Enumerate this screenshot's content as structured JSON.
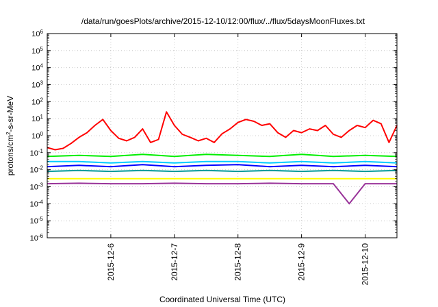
{
  "chart_data": {
    "type": "line",
    "title": "/data/run/goesPlots/archive/2015-12-10/12:00/flux/../flux/5daysMoonFluxes.txt",
    "xlabel": "Coordinated Universal Time (UTC)",
    "ylabel": "protons/cm²-s-sr-MeV",
    "yscale": "log",
    "ylim": [
      1e-06,
      1000000.0
    ],
    "xlim": [
      "2015-12-05T00:00",
      "2015-12-10T12:00"
    ],
    "xticks": [
      "2015-12-6",
      "2015-12-7",
      "2015-12-8",
      "2015-12-9",
      "2015-12-10"
    ],
    "yticks": [
      {
        "base": "10",
        "exp": "-6"
      },
      {
        "base": "10",
        "exp": "-5"
      },
      {
        "base": "10",
        "exp": "-4"
      },
      {
        "base": "10",
        "exp": "-3"
      },
      {
        "base": "10",
        "exp": "-2"
      },
      {
        "base": "10",
        "exp": "-1"
      },
      {
        "base": "10",
        "exp": "0"
      },
      {
        "base": "10",
        "exp": "1"
      },
      {
        "base": "10",
        "exp": "2"
      },
      {
        "base": "10",
        "exp": "3"
      },
      {
        "base": "10",
        "exp": "4"
      },
      {
        "base": "10",
        "exp": "5"
      },
      {
        "base": "10",
        "exp": "6"
      }
    ],
    "grid": true,
    "series": [
      {
        "color": "#ff0000",
        "x": [
          "2015-12-05T00:00",
          "2015-12-05T03:00",
          "2015-12-05T06:00",
          "2015-12-05T09:00",
          "2015-12-05T12:00",
          "2015-12-05T15:00",
          "2015-12-05T18:00",
          "2015-12-05T21:00",
          "2015-12-06T00:00",
          "2015-12-06T03:00",
          "2015-12-06T06:00",
          "2015-12-06T09:00",
          "2015-12-06T12:00",
          "2015-12-06T15:00",
          "2015-12-06T18:00",
          "2015-12-06T21:00",
          "2015-12-07T00:00",
          "2015-12-07T03:00",
          "2015-12-07T06:00",
          "2015-12-07T09:00",
          "2015-12-07T12:00",
          "2015-12-07T15:00",
          "2015-12-07T18:00",
          "2015-12-07T21:00",
          "2015-12-08T00:00",
          "2015-12-08T03:00",
          "2015-12-08T06:00",
          "2015-12-08T09:00",
          "2015-12-08T12:00",
          "2015-12-08T15:00",
          "2015-12-08T18:00",
          "2015-12-08T21:00",
          "2015-12-09T00:00",
          "2015-12-09T03:00",
          "2015-12-09T06:00",
          "2015-12-09T09:00",
          "2015-12-09T12:00",
          "2015-12-09T15:00",
          "2015-12-09T18:00",
          "2015-12-09T21:00",
          "2015-12-10T00:00",
          "2015-12-10T03:00",
          "2015-12-10T06:00",
          "2015-12-10T09:00",
          "2015-12-10T12:00"
        ],
        "y": [
          0.2,
          0.15,
          0.18,
          0.35,
          0.8,
          1.5,
          4,
          9,
          2,
          0.7,
          0.5,
          0.8,
          2.5,
          0.4,
          0.6,
          25,
          4,
          1.2,
          0.8,
          0.5,
          0.7,
          0.4,
          1.3,
          2.5,
          6,
          9,
          7,
          4,
          5,
          1.5,
          0.8,
          2,
          1.5,
          2.5,
          2,
          4,
          1.2,
          0.8,
          2,
          4,
          3,
          8,
          5,
          0.4,
          4
        ]
      },
      {
        "color": "#00ee00",
        "x": [
          "2015-12-05T00:00",
          "2015-12-05T12:00",
          "2015-12-06T00:00",
          "2015-12-06T12:00",
          "2015-12-07T00:00",
          "2015-12-07T12:00",
          "2015-12-08T00:00",
          "2015-12-08T12:00",
          "2015-12-09T00:00",
          "2015-12-09T12:00",
          "2015-12-10T00:00",
          "2015-12-10T12:00"
        ],
        "y": [
          0.06,
          0.07,
          0.06,
          0.08,
          0.06,
          0.08,
          0.07,
          0.06,
          0.08,
          0.06,
          0.07,
          0.06
        ]
      },
      {
        "color": "#00ccff",
        "x": [
          "2015-12-05T00:00",
          "2015-12-05T12:00",
          "2015-12-06T00:00",
          "2015-12-06T12:00",
          "2015-12-07T00:00",
          "2015-12-07T12:00",
          "2015-12-08T00:00",
          "2015-12-08T12:00",
          "2015-12-09T00:00",
          "2015-12-09T12:00",
          "2015-12-10T00:00",
          "2015-12-10T12:00"
        ],
        "y": [
          0.03,
          0.03,
          0.025,
          0.03,
          0.025,
          0.03,
          0.03,
          0.025,
          0.03,
          0.025,
          0.03,
          0.025
        ]
      },
      {
        "color": "#0000ff",
        "x": [
          "2015-12-05T00:00",
          "2015-12-05T12:00",
          "2015-12-06T00:00",
          "2015-12-06T12:00",
          "2015-12-07T00:00",
          "2015-12-07T12:00",
          "2015-12-08T00:00",
          "2015-12-08T12:00",
          "2015-12-09T00:00",
          "2015-12-09T12:00",
          "2015-12-10T00:00",
          "2015-12-10T12:00"
        ],
        "y": [
          0.015,
          0.018,
          0.015,
          0.02,
          0.015,
          0.018,
          0.02,
          0.015,
          0.018,
          0.015,
          0.018,
          0.015
        ]
      },
      {
        "color": "#009999",
        "x": [
          "2015-12-05T00:00",
          "2015-12-05T12:00",
          "2015-12-06T00:00",
          "2015-12-06T12:00",
          "2015-12-07T00:00",
          "2015-12-07T12:00",
          "2015-12-08T00:00",
          "2015-12-08T12:00",
          "2015-12-09T00:00",
          "2015-12-09T12:00",
          "2015-12-10T00:00",
          "2015-12-10T12:00"
        ],
        "y": [
          0.008,
          0.009,
          0.008,
          0.009,
          0.008,
          0.009,
          0.008,
          0.009,
          0.008,
          0.009,
          0.008,
          0.009
        ]
      },
      {
        "color": "#ffff00",
        "x": [
          "2015-12-05T00:00",
          "2015-12-05T12:00",
          "2015-12-06T00:00",
          "2015-12-06T12:00",
          "2015-12-07T00:00",
          "2015-12-07T12:00",
          "2015-12-08T00:00",
          "2015-12-08T12:00",
          "2015-12-09T00:00",
          "2015-12-09T12:00",
          "2015-12-10T00:00",
          "2015-12-10T12:00"
        ],
        "y": [
          0.003,
          0.003,
          0.003,
          0.003,
          0.003,
          0.003,
          0.003,
          0.003,
          0.003,
          0.003,
          0.003,
          0.003
        ]
      },
      {
        "color": "#993399",
        "x": [
          "2015-12-05T00:00",
          "2015-12-05T12:00",
          "2015-12-06T00:00",
          "2015-12-06T12:00",
          "2015-12-07T00:00",
          "2015-12-07T12:00",
          "2015-12-08T00:00",
          "2015-12-08T12:00",
          "2015-12-09T00:00",
          "2015-12-09T12:00",
          "2015-12-09T18:00",
          "2015-12-10T00:00",
          "2015-12-10T12:00"
        ],
        "y": [
          0.0015,
          0.0016,
          0.0015,
          0.0015,
          0.0016,
          0.0015,
          0.0015,
          0.0016,
          0.0015,
          0.0015,
          0.0001,
          0.0015,
          0.0015
        ]
      }
    ]
  }
}
